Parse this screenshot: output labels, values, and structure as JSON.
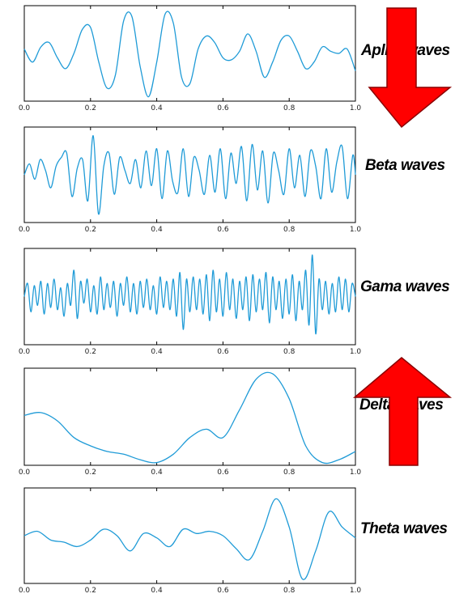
{
  "chart_data": [
    {
      "type": "line",
      "series": [
        {
          "name": "Aplha waves",
          "color": "#1f9bd7"
        }
      ],
      "label": "Aplha waves",
      "xlim": [
        0.0,
        1.0
      ],
      "xticks": [
        "0.0",
        "0.2",
        "0.4",
        "0.6",
        "0.8",
        "1.0"
      ],
      "x": [
        0.0,
        0.025,
        0.05,
        0.075,
        0.1,
        0.125,
        0.15,
        0.175,
        0.2,
        0.225,
        0.25,
        0.275,
        0.3,
        0.325,
        0.35,
        0.375,
        0.4,
        0.425,
        0.45,
        0.475,
        0.5,
        0.525,
        0.55,
        0.575,
        0.6,
        0.625,
        0.65,
        0.675,
        0.7,
        0.725,
        0.75,
        0.775,
        0.8,
        0.825,
        0.85,
        0.875,
        0.9,
        0.925,
        0.95,
        0.975,
        1.0
      ],
      "y": [
        0.1,
        -0.2,
        0.15,
        0.25,
        -0.1,
        -0.35,
        0.0,
        0.55,
        0.6,
        -0.2,
        -0.8,
        -0.5,
        0.75,
        0.85,
        -0.3,
        -1.0,
        -0.2,
        0.9,
        0.7,
        -0.55,
        -0.7,
        0.1,
        0.4,
        0.25,
        -0.1,
        -0.15,
        0.05,
        0.45,
        0.05,
        -0.55,
        -0.2,
        0.3,
        0.4,
        0.05,
        -0.35,
        -0.2,
        0.15,
        0.05,
        0.0,
        0.1,
        -0.4
      ],
      "ylim": [
        -1.1,
        1.1
      ]
    },
    {
      "type": "line",
      "series": [
        {
          "name": "Beta waves",
          "color": "#1f9bd7"
        }
      ],
      "label": "Beta waves",
      "xlim": [
        0.0,
        1.0
      ],
      "xticks": [
        "0.0",
        "0.2",
        "0.4",
        "0.6",
        "0.8",
        "1.0"
      ],
      "x": [
        0.0,
        0.016,
        0.032,
        0.048,
        0.064,
        0.08,
        0.096,
        0.112,
        0.128,
        0.144,
        0.16,
        0.176,
        0.192,
        0.208,
        0.224,
        0.24,
        0.256,
        0.272,
        0.288,
        0.304,
        0.32,
        0.336,
        0.352,
        0.368,
        0.384,
        0.4,
        0.416,
        0.432,
        0.448,
        0.464,
        0.48,
        0.496,
        0.512,
        0.528,
        0.544,
        0.56,
        0.576,
        0.592,
        0.608,
        0.624,
        0.64,
        0.656,
        0.672,
        0.688,
        0.704,
        0.72,
        0.736,
        0.752,
        0.768,
        0.784,
        0.8,
        0.816,
        0.832,
        0.848,
        0.864,
        0.88,
        0.896,
        0.912,
        0.928,
        0.944,
        0.96,
        0.976,
        0.992,
        1.0
      ],
      "y": [
        0.0,
        0.25,
        -0.1,
        0.35,
        0.1,
        -0.3,
        0.2,
        0.4,
        0.5,
        -0.5,
        0.15,
        0.35,
        -0.6,
        0.9,
        -0.9,
        0.2,
        0.5,
        -0.45,
        0.4,
        0.1,
        -0.2,
        0.35,
        -0.3,
        0.55,
        -0.25,
        0.6,
        -0.55,
        0.55,
        -0.15,
        -0.4,
        0.6,
        -0.5,
        0.4,
        0.1,
        -0.45,
        0.45,
        -0.4,
        0.6,
        -0.55,
        0.5,
        -0.2,
        0.65,
        -0.6,
        0.7,
        -0.35,
        0.55,
        -0.65,
        0.5,
        0.1,
        -0.45,
        0.6,
        -0.3,
        0.45,
        -0.5,
        0.55,
        0.2,
        -0.55,
        0.6,
        -0.4,
        0.3,
        0.65,
        -0.55,
        0.45,
        0.0
      ],
      "ylim": [
        -1.1,
        1.1
      ]
    },
    {
      "type": "line",
      "series": [
        {
          "name": "Gama waves",
          "color": "#1f9bd7"
        }
      ],
      "label": "Gama waves",
      "xlim": [
        0.0,
        1.0
      ],
      "xticks": [
        "0.0",
        "0.2",
        "0.4",
        "0.6",
        "0.8",
        "1.0"
      ],
      "x": [
        0.0,
        0.01,
        0.02,
        0.03,
        0.04,
        0.05,
        0.06,
        0.07,
        0.08,
        0.09,
        0.1,
        0.11,
        0.12,
        0.13,
        0.14,
        0.15,
        0.16,
        0.17,
        0.18,
        0.19,
        0.2,
        0.21,
        0.22,
        0.23,
        0.24,
        0.25,
        0.26,
        0.27,
        0.28,
        0.29,
        0.3,
        0.31,
        0.32,
        0.33,
        0.34,
        0.35,
        0.36,
        0.37,
        0.38,
        0.39,
        0.4,
        0.41,
        0.42,
        0.43,
        0.44,
        0.45,
        0.46,
        0.47,
        0.48,
        0.49,
        0.5,
        0.51,
        0.52,
        0.53,
        0.54,
        0.55,
        0.56,
        0.57,
        0.58,
        0.59,
        0.6,
        0.61,
        0.62,
        0.63,
        0.64,
        0.65,
        0.66,
        0.67,
        0.68,
        0.69,
        0.7,
        0.71,
        0.72,
        0.73,
        0.74,
        0.75,
        0.76,
        0.77,
        0.78,
        0.79,
        0.8,
        0.81,
        0.82,
        0.83,
        0.84,
        0.85,
        0.86,
        0.87,
        0.88,
        0.89,
        0.9,
        0.91,
        0.92,
        0.93,
        0.94,
        0.95,
        0.96,
        0.97,
        0.98,
        0.99,
        1.0
      ],
      "y": [
        0.0,
        0.3,
        -0.35,
        0.25,
        -0.2,
        0.35,
        -0.4,
        0.3,
        -0.25,
        0.4,
        -0.3,
        0.2,
        -0.45,
        0.3,
        -0.2,
        0.6,
        -0.5,
        0.35,
        -0.15,
        0.4,
        -0.35,
        0.25,
        -0.4,
        0.45,
        -0.3,
        0.3,
        -0.25,
        0.35,
        -0.45,
        0.3,
        -0.2,
        0.45,
        -0.35,
        0.3,
        -0.4,
        0.35,
        -0.25,
        0.4,
        -0.3,
        0.25,
        -0.4,
        0.45,
        -0.25,
        0.35,
        -0.3,
        0.4,
        -0.45,
        0.55,
        -0.75,
        0.4,
        -0.35,
        0.45,
        -0.3,
        0.4,
        -0.4,
        0.5,
        -0.55,
        0.6,
        -0.35,
        0.4,
        -0.45,
        0.55,
        -0.3,
        0.4,
        -0.5,
        0.35,
        -0.3,
        0.45,
        -0.55,
        0.5,
        -0.35,
        0.4,
        -0.3,
        0.55,
        -0.6,
        0.45,
        -0.3,
        0.35,
        -0.5,
        0.4,
        -0.4,
        0.5,
        -0.55,
        0.35,
        -0.3,
        0.6,
        -0.65,
        0.95,
        -0.85,
        0.4,
        -0.3,
        0.35,
        -0.4,
        0.3,
        -0.35,
        0.45,
        -0.3,
        0.4,
        -0.35,
        0.3,
        0.0
      ],
      "ylim": [
        -1.1,
        1.1
      ]
    },
    {
      "type": "line",
      "series": [
        {
          "name": "Delta waves",
          "color": "#1f9bd7"
        }
      ],
      "label": "Delta waves",
      "xlim": [
        0.0,
        1.0
      ],
      "xticks": [
        "0.0",
        "0.2",
        "0.4",
        "0.6",
        "0.8",
        "1.0"
      ],
      "x": [
        0.0,
        0.05,
        0.1,
        0.15,
        0.2,
        0.25,
        0.3,
        0.35,
        0.4,
        0.45,
        0.5,
        0.55,
        0.6,
        0.65,
        0.7,
        0.75,
        0.8,
        0.85,
        0.9,
        0.95,
        1.0
      ],
      "y": [
        0.1,
        0.15,
        0.0,
        -0.3,
        -0.45,
        -0.55,
        -0.6,
        -0.7,
        -0.75,
        -0.6,
        -0.3,
        -0.15,
        -0.3,
        0.2,
        0.75,
        0.85,
        0.4,
        -0.45,
        -0.75,
        -0.7,
        -0.55
      ],
      "ylim": [
        -0.8,
        0.95
      ]
    },
    {
      "type": "line",
      "series": [
        {
          "name": "Theta waves",
          "color": "#1f9bd7"
        }
      ],
      "label": "Theta waves",
      "xlim": [
        0.0,
        1.0
      ],
      "xticks": [
        "0.0",
        "0.2",
        "0.4",
        "0.6",
        "0.8",
        "1.0"
      ],
      "x": [
        0.0,
        0.04,
        0.08,
        0.12,
        0.16,
        0.2,
        0.24,
        0.28,
        0.32,
        0.36,
        0.4,
        0.44,
        0.48,
        0.52,
        0.56,
        0.6,
        0.64,
        0.68,
        0.72,
        0.76,
        0.8,
        0.84,
        0.88,
        0.92,
        0.96,
        1.0
      ],
      "y": [
        0.0,
        0.1,
        -0.1,
        -0.15,
        -0.25,
        -0.1,
        0.15,
        0.0,
        -0.35,
        0.05,
        -0.05,
        -0.25,
        0.15,
        0.05,
        0.1,
        0.0,
        -0.3,
        -0.55,
        0.1,
        0.85,
        0.2,
        -1.0,
        -0.35,
        0.55,
        0.2,
        -0.05
      ],
      "ylim": [
        -1.1,
        1.1
      ]
    }
  ],
  "arrows": {
    "color": "#ff0000",
    "outline": "#8a0000"
  }
}
